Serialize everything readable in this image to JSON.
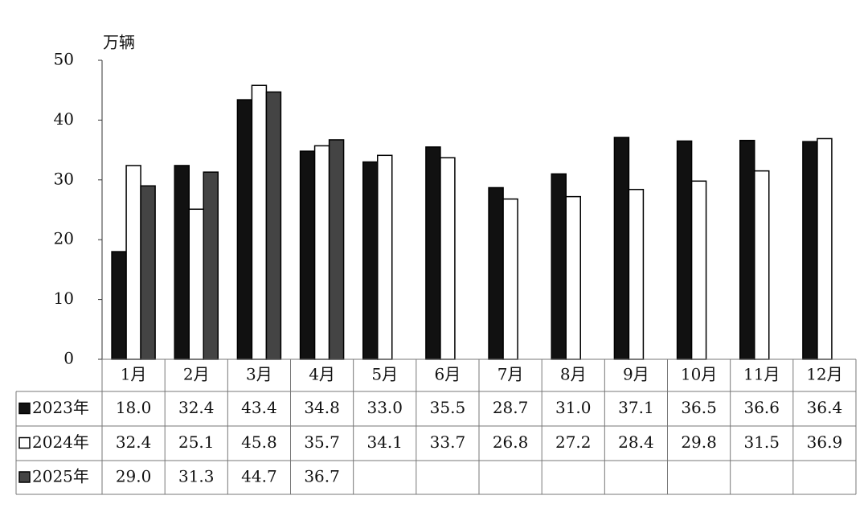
{
  "chart_data": {
    "type": "bar",
    "y_label": "万辆",
    "categories": [
      "1月",
      "2月",
      "3月",
      "4月",
      "5月",
      "6月",
      "7月",
      "8月",
      "9月",
      "10月",
      "11月",
      "12月"
    ],
    "series": [
      {
        "name": "2023年",
        "color": "#111111",
        "values": [
          18.0,
          32.4,
          43.4,
          34.8,
          33.0,
          35.5,
          28.7,
          31.0,
          37.1,
          36.5,
          36.6,
          36.4
        ],
        "value_labels": [
          "18.0",
          "32.4",
          "43.4",
          "34.8",
          "33.0",
          "35.5",
          "28.7",
          "31.0",
          "37.1",
          "36.5",
          "36.6",
          "36.4"
        ]
      },
      {
        "name": "2024年",
        "color": "#ffffff",
        "values": [
          32.4,
          25.1,
          45.8,
          35.7,
          34.1,
          33.7,
          26.8,
          27.2,
          28.4,
          29.8,
          31.5,
          36.9
        ],
        "value_labels": [
          "32.4",
          "25.1",
          "45.8",
          "35.7",
          "34.1",
          "33.7",
          "26.8",
          "27.2",
          "28.4",
          "29.8",
          "31.5",
          "36.9"
        ]
      },
      {
        "name": "2025年",
        "color": "#444444",
        "values": [
          29.0,
          31.3,
          44.7,
          36.7,
          null,
          null,
          null,
          null,
          null,
          null,
          null,
          null
        ],
        "value_labels": [
          "29.0",
          "31.3",
          "44.7",
          "36.7",
          null,
          null,
          null,
          null,
          null,
          null,
          null,
          null
        ]
      }
    ],
    "ylim": [
      0,
      50
    ],
    "yticks": [
      0,
      10,
      20,
      30,
      40,
      50
    ],
    "grid": false
  }
}
